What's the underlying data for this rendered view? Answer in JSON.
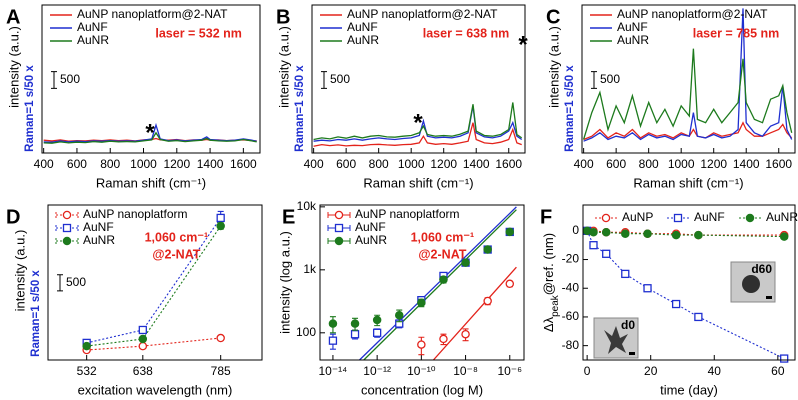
{
  "chart_data": [
    {
      "panel": "A",
      "type": "line",
      "laser": "laser = 532 nm",
      "star": "*",
      "xlabel": "Raman shift (cm⁻¹)",
      "ylabel": "intensity (a.u.)",
      "ylabel_note": "Raman=1 s/50 x",
      "x": [
        400,
        450,
        500,
        550,
        600,
        650,
        700,
        750,
        800,
        850,
        900,
        950,
        1000,
        1050,
        1075,
        1100,
        1150,
        1200,
        1250,
        1300,
        1350,
        1380,
        1400,
        1450,
        1500,
        1550,
        1600,
        1625,
        1650,
        1680
      ],
      "xlim": [
        390,
        1700
      ],
      "xticks": [
        400,
        600,
        800,
        1000,
        1200,
        1400,
        1600
      ],
      "ylim": [
        0,
        4400
      ],
      "scale_bar": 500,
      "line_style": "solid",
      "legend": "upper left",
      "series": [
        {
          "name": "AuNP nanoplatform@2-NAT",
          "color": "#e3231b",
          "values": [
            380,
            360,
            390,
            350,
            370,
            360,
            380,
            370,
            390,
            370,
            380,
            360,
            390,
            400,
            430,
            390,
            380,
            400,
            370,
            390,
            380,
            400,
            380,
            390,
            370,
            380,
            390,
            380,
            370,
            360
          ]
        },
        {
          "name": "AuNF",
          "color": "#1f2fd0",
          "values": [
            330,
            320,
            360,
            330,
            350,
            340,
            360,
            350,
            370,
            350,
            360,
            350,
            380,
            420,
            830,
            420,
            370,
            390,
            360,
            380,
            400,
            480,
            400,
            380,
            370,
            380,
            420,
            400,
            380,
            350
          ]
        },
        {
          "name": "AuNR",
          "color": "#1d7a1d",
          "values": [
            300,
            290,
            330,
            300,
            320,
            310,
            340,
            320,
            350,
            330,
            340,
            330,
            360,
            390,
            600,
            400,
            350,
            370,
            340,
            360,
            380,
            430,
            380,
            360,
            350,
            360,
            400,
            380,
            360,
            330
          ]
        }
      ]
    },
    {
      "panel": "B",
      "type": "line",
      "laser": "laser = 638 nm",
      "star": "*",
      "xlabel": "Raman shift (cm⁻¹)",
      "ylabel": "intensity (a.u.)",
      "ylabel_note": "Raman=1 s/50 x",
      "x": [
        400,
        450,
        500,
        550,
        600,
        650,
        700,
        750,
        800,
        850,
        900,
        950,
        1000,
        1050,
        1075,
        1100,
        1150,
        1200,
        1250,
        1300,
        1350,
        1380,
        1400,
        1450,
        1500,
        1550,
        1600,
        1625,
        1650,
        1680
      ],
      "xlim": [
        390,
        1700
      ],
      "xticks": [
        400,
        600,
        800,
        1000,
        1200,
        1400,
        1600
      ],
      "ylim": [
        0,
        4400
      ],
      "scale_bar": 500,
      "line_style": "solid",
      "legend": "upper left",
      "series": [
        {
          "name": "AuNP nanoplatform@2-NAT",
          "color": "#e3231b",
          "values": [
            200,
            250,
            220,
            240,
            210,
            230,
            220,
            250,
            260,
            240,
            230,
            250,
            260,
            300,
            500,
            300,
            260,
            280,
            260,
            300,
            350,
            900,
            400,
            300,
            280,
            320,
            400,
            700,
            300,
            250
          ]
        },
        {
          "name": "AuNF",
          "color": "#1f2fd0",
          "values": [
            350,
            380,
            360,
            400,
            380,
            420,
            380,
            420,
            450,
            420,
            400,
            430,
            450,
            520,
            950,
            500,
            450,
            470,
            450,
            500,
            600,
            1400,
            600,
            480,
            450,
            500,
            650,
            900,
            500,
            400
          ]
        },
        {
          "name": "AuNR",
          "color": "#1d7a1d",
          "values": [
            400,
            450,
            420,
            480,
            440,
            500,
            450,
            500,
            520,
            480,
            470,
            500,
            520,
            600,
            800,
            550,
            500,
            520,
            500,
            560,
            650,
            1450,
            650,
            520,
            500,
            550,
            700,
            1500,
            550,
            450
          ]
        }
      ]
    },
    {
      "panel": "C",
      "type": "line",
      "laser": "laser = 785 nm",
      "star": "*",
      "xlabel": "Raman shift (cm⁻¹)",
      "ylabel": "intensity (a.u.)",
      "ylabel_note": "Raman=1 s/50 x",
      "x": [
        400,
        450,
        500,
        550,
        600,
        650,
        700,
        750,
        800,
        850,
        900,
        950,
        1000,
        1050,
        1075,
        1100,
        1150,
        1200,
        1250,
        1300,
        1350,
        1380,
        1400,
        1450,
        1500,
        1550,
        1600,
        1625,
        1650,
        1680
      ],
      "xlim": [
        390,
        1700
      ],
      "xticks": [
        400,
        600,
        800,
        1000,
        1200,
        1400,
        1600
      ],
      "ylim": [
        0,
        4400
      ],
      "scale_bar": 500,
      "line_style": "solid",
      "legend": "upper left",
      "series": [
        {
          "name": "AuNP nanoplatform@2-NAT",
          "color": "#e3231b",
          "values": [
            400,
            500,
            700,
            450,
            600,
            500,
            700,
            450,
            600,
            500,
            550,
            450,
            600,
            500,
            700,
            500,
            450,
            600,
            500,
            550,
            600,
            900,
            700,
            500,
            500,
            600,
            700,
            850,
            600,
            450
          ]
        },
        {
          "name": "AuNF",
          "color": "#1f2fd0",
          "values": [
            350,
            450,
            600,
            400,
            500,
            450,
            600,
            400,
            550,
            450,
            500,
            400,
            550,
            500,
            1200,
            500,
            450,
            550,
            450,
            500,
            700,
            4300,
            900,
            600,
            500,
            800,
            900,
            2000,
            700,
            400
          ]
        },
        {
          "name": "AuNR",
          "color": "#1d7a1d",
          "values": [
            400,
            1200,
            1800,
            700,
            1400,
            900,
            1700,
            800,
            1500,
            900,
            1300,
            800,
            1400,
            1100,
            3100,
            1000,
            900,
            1300,
            900,
            1200,
            1500,
            2800,
            1500,
            1000,
            900,
            1600,
            1700,
            2000,
            1200,
            600
          ]
        }
      ]
    },
    {
      "panel": "D",
      "type": "line",
      "xlabel": "excitation wavelength (nm)",
      "ylabel": "intensity (a.u.)",
      "ylabel_note": "Raman=1 s/50 x",
      "annotation": [
        "1,060 cm⁻¹",
        "@2-NAT"
      ],
      "x": [
        532,
        638,
        785
      ],
      "xlim": [
        459,
        863
      ],
      "xticks": [
        532,
        638,
        785
      ],
      "ylim": [
        0,
        4800
      ],
      "scale_bar": 500,
      "line_style": "dotted",
      "legend": "upper left",
      "series": [
        {
          "name": "AuNP nanoplatform",
          "color": "#e3231b",
          "marker": "circle-open",
          "values": [
            310,
            430,
            680
          ],
          "errors": [
            25,
            30,
            40
          ]
        },
        {
          "name": "AuNF",
          "color": "#1f2fd0",
          "marker": "square-open",
          "values": [
            530,
            930,
            4400
          ],
          "errors": [
            80,
            100,
            200
          ]
        },
        {
          "name": "AuNR",
          "color": "#1d7a1d",
          "marker": "circle",
          "values": [
            430,
            650,
            4150
          ],
          "errors": [
            50,
            60,
            100
          ]
        }
      ]
    },
    {
      "panel": "E",
      "type": "line",
      "xlabel": "concentration (log M)",
      "ylabel": "intensity (log a.u.)",
      "annotation": [
        "1,060 cm⁻¹",
        "@2-NAT"
      ],
      "log_x": true,
      "log_y": true,
      "x": [
        1e-14,
        1e-13,
        1e-12,
        1e-11,
        1e-10,
        1e-09,
        1e-08,
        1e-07,
        1e-06
      ],
      "xlim": [
        2.6e-15,
        4.4e-06
      ],
      "xticks": [
        {
          "value": 1e-14,
          "label": "10⁻¹⁴"
        },
        {
          "value": 1e-12,
          "label": "10⁻¹²"
        },
        {
          "value": 1e-10,
          "label": "10⁻¹⁰"
        },
        {
          "value": 1e-08,
          "label": "10⁻⁸"
        },
        {
          "value": 1e-06,
          "label": "10⁻⁶"
        }
      ],
      "ylim": [
        37,
        10700
      ],
      "yticks": [
        100,
        {
          "value": 1000,
          "label": "1k"
        },
        {
          "value": 10000,
          "label": "10k"
        }
      ],
      "line_style": "none",
      "legend": "upper left",
      "series": [
        {
          "name": "AuNP nanoplatform",
          "color": "#e3231b",
          "marker": "circle-open",
          "values": [
            null,
            null,
            null,
            null,
            65,
            80,
            95,
            320,
            600
          ],
          "errors": [
            null,
            null,
            null,
            null,
            20,
            15,
            20,
            40,
            60
          ],
          "fit": {
            "x": [
              3.5e-10,
              2e-06
            ],
            "values": [
              37,
              1100
            ]
          }
        },
        {
          "name": "AuNF",
          "color": "#1f2fd0",
          "marker": "square-open",
          "values": [
            75,
            95,
            100,
            140,
            330,
            800,
            1300,
            2100,
            4000
          ],
          "errors": [
            20,
            15,
            15,
            20,
            30,
            100,
            80,
            100,
            200
          ],
          "fit": {
            "x": [
              1.6e-13,
              2e-06
            ],
            "values": [
              37,
              10000
            ]
          }
        },
        {
          "name": "AuNR",
          "color": "#1d7a1d",
          "marker": "circle",
          "values": [
            140,
            140,
            160,
            190,
            300,
            700,
            1300,
            2100,
            4000
          ],
          "errors": [
            40,
            30,
            30,
            40,
            40,
            80,
            80,
            100,
            200
          ],
          "fit": {
            "x": [
              2.5e-13,
              2e-06
            ],
            "values": [
              37,
              9000
            ]
          }
        }
      ]
    },
    {
      "panel": "F",
      "type": "line",
      "xlabel": "time (day)",
      "ylabel": [
        "Δλ",
        "peak",
        "@ref. (nm)"
      ],
      "x": [
        0,
        2,
        6,
        12,
        19,
        28,
        35,
        62
      ],
      "xlim": [
        -1.3,
        65.4
      ],
      "xticks": [
        0,
        20,
        40,
        60
      ],
      "ylim": [
        -90,
        18
      ],
      "yticks": [
        0,
        -20,
        -40,
        -60,
        -80
      ],
      "line_style": "dotted",
      "legend": "upper center",
      "insets": [
        {
          "label": "d0"
        },
        {
          "label": "d60"
        }
      ],
      "series": [
        {
          "name": "AuNP",
          "color": "#e3231b",
          "marker": "circle-open",
          "values": [
            0,
            0,
            -1,
            -1,
            -2,
            -2,
            -3,
            -3
          ]
        },
        {
          "name": "AuNF",
          "color": "#1f2fd0",
          "marker": "square-open",
          "values": [
            0,
            -10,
            -16,
            -30,
            -40,
            -51,
            -60,
            -89
          ]
        },
        {
          "name": "AuNR",
          "color": "#1d7a1d",
          "marker": "circle",
          "values": [
            0,
            -1,
            -1,
            -2,
            -2,
            -3,
            -3,
            -4
          ]
        }
      ]
    }
  ]
}
